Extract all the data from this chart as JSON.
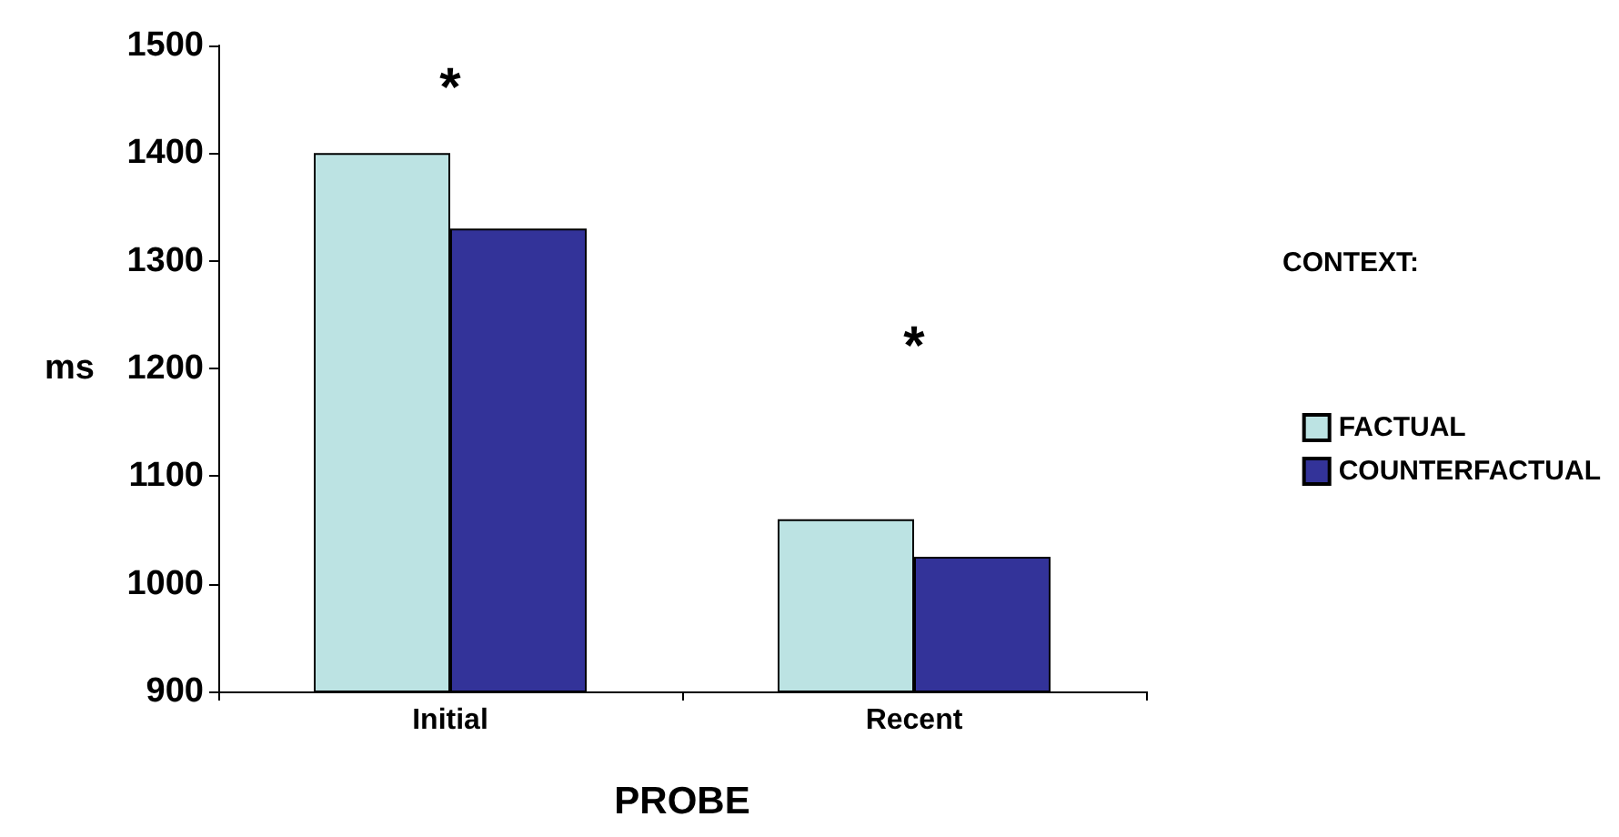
{
  "chart_data": {
    "type": "bar",
    "xlabel": "PROBE",
    "ylabel": "ms",
    "legend_title": "CONTEXT:",
    "categories": [
      "Initial",
      "Recent"
    ],
    "series": [
      {
        "name": "FACTUAL",
        "color": "#bce3e3",
        "values": [
          1400,
          1060
        ]
      },
      {
        "name": "COUNTERFACTUAL",
        "color": "#333399",
        "values": [
          1330,
          1025
        ]
      }
    ],
    "ylim": [
      900,
      1500
    ],
    "yticks": [
      900,
      1000,
      1100,
      1200,
      1300,
      1400,
      1500
    ],
    "grid": false,
    "legend": "right",
    "annotations": [
      "*",
      "*"
    ]
  }
}
